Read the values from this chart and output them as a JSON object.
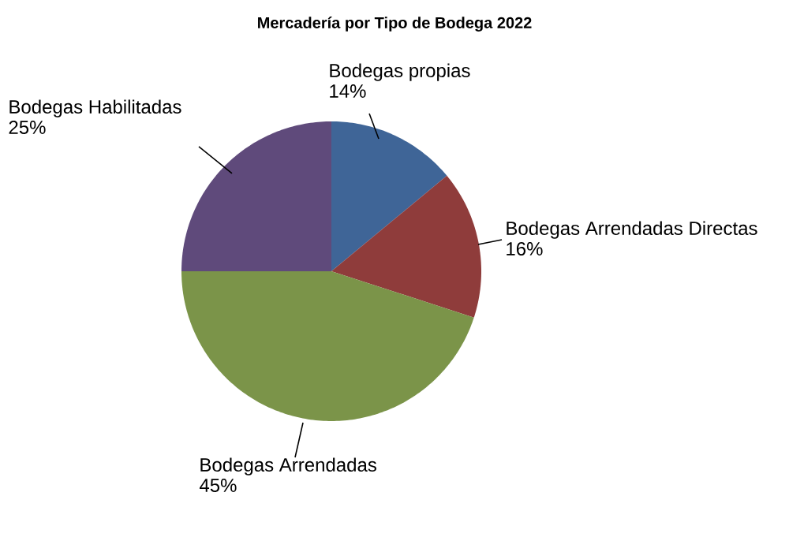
{
  "chart_data": {
    "type": "pie",
    "title": "Mercadería por Tipo de Bodega 2022",
    "categories": [
      "Bodegas propias",
      "Bodegas Arrendadas Directas",
      "Bodegas Arrendadas",
      "Bodegas Habilitadas"
    ],
    "values": [
      14,
      16,
      45,
      25
    ],
    "value_labels": [
      "14%",
      "16%",
      "45%",
      "25%"
    ],
    "colors": [
      "#3f6597",
      "#8f3c3b",
      "#7b9449",
      "#5f4a7b"
    ]
  }
}
